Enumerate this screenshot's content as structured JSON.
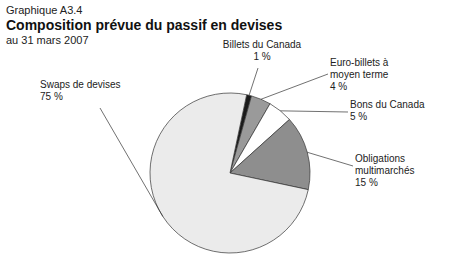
{
  "chart_data": {
    "type": "pie",
    "title": "Graphique A3.4",
    "subtitle": "Composition prévue du passif en devises",
    "date_note": "au 31 mars 2007",
    "categories": [
      "Billets du Canada",
      "Euro-billets à moyen terme",
      "Bons du Canada",
      "Obligations multimarchés",
      "Swaps de devises"
    ],
    "values": [
      1,
      4,
      5,
      15,
      75
    ],
    "value_labels": [
      "1 %",
      "4 %",
      "5 %",
      "15 %",
      "75 %"
    ],
    "colors": [
      "#1a1a1a",
      "#9a9a9a",
      "#ffffff",
      "#8e8e8e",
      "#ebebeb"
    ],
    "data_labels": true
  }
}
